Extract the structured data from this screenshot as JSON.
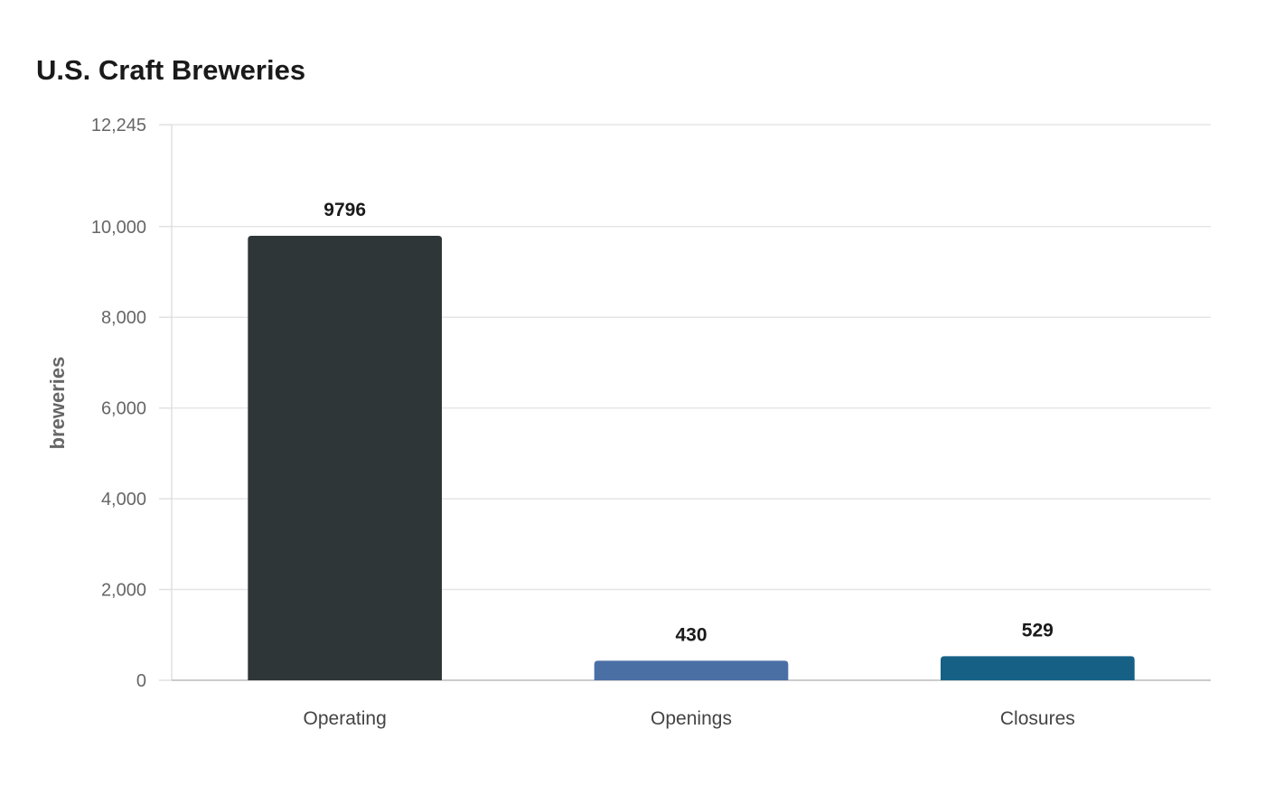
{
  "chart_data": {
    "type": "bar",
    "title": "U.S. Craft Breweries",
    "xlabel": "",
    "ylabel": "breweries",
    "categories": [
      "Operating",
      "Openings",
      "Closures"
    ],
    "values": [
      9796,
      430,
      529
    ],
    "colors": [
      "#2e3638",
      "#4a6fa5",
      "#166086"
    ],
    "ylim": [
      0,
      12245
    ],
    "yticks": [
      0,
      2000,
      4000,
      6000,
      8000,
      10000,
      12245
    ],
    "ytick_labels": [
      "0",
      "2,000",
      "4,000",
      "6,000",
      "8,000",
      "10,000",
      "12,245"
    ],
    "grid": true,
    "legend": "none"
  }
}
